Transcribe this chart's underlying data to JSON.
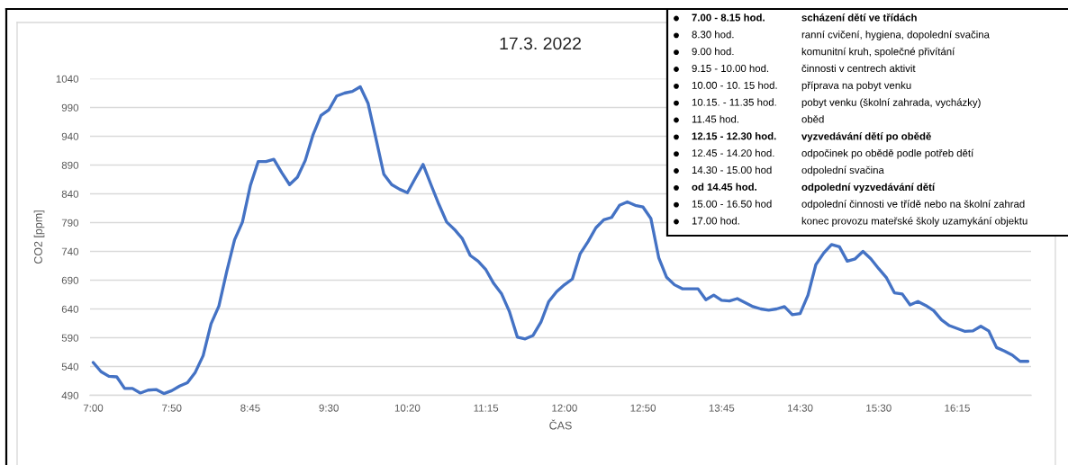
{
  "chart_data": {
    "type": "line",
    "title": "17.3. 2022",
    "xlabel": "ČAS",
    "ylabel": "CO2 [ppm]",
    "categories": [
      "7:00",
      null,
      null,
      null,
      null,
      null,
      null,
      null,
      null,
      null,
      "7:50",
      null,
      null,
      null,
      null,
      null,
      null,
      null,
      null,
      null,
      "8:45",
      null,
      null,
      null,
      null,
      null,
      null,
      null,
      null,
      null,
      "9:30",
      null,
      null,
      null,
      null,
      null,
      null,
      null,
      null,
      null,
      "10:20",
      null,
      null,
      null,
      null,
      null,
      null,
      null,
      null,
      null,
      "11:15",
      null,
      null,
      null,
      null,
      null,
      null,
      null,
      null,
      null,
      "12:00",
      null,
      null,
      null,
      null,
      null,
      null,
      null,
      null,
      null,
      "12:50",
      null,
      null,
      null,
      null,
      null,
      null,
      null,
      null,
      null,
      "13:45",
      null,
      null,
      null,
      null,
      null,
      null,
      null,
      null,
      null,
      "14:30",
      null,
      null,
      null,
      null,
      null,
      null,
      null,
      null,
      null,
      "15:30",
      null,
      null,
      null,
      null,
      null,
      null,
      null,
      null,
      null,
      "16:15",
      null,
      null,
      null,
      null,
      null,
      null,
      null,
      null,
      null
    ],
    "series": [
      {
        "color": "#4472c4",
        "values": [
          547,
          531,
          523,
          522,
          502,
          502,
          494,
          499,
          500,
          493,
          498,
          506,
          512,
          530,
          559,
          614,
          645,
          705,
          760,
          791,
          854,
          896,
          896,
          900,
          877,
          856,
          869,
          898,
          943,
          976,
          986,
          1010,
          1015,
          1018,
          1026,
          997,
          936,
          874,
          856,
          848,
          842,
          867,
          891,
          856,
          822,
          791,
          778,
          762,
          733,
          723,
          708,
          684,
          666,
          635,
          591,
          588,
          594,
          617,
          653,
          670,
          682,
          692,
          736,
          757,
          781,
          795,
          799,
          820,
          826,
          820,
          817,
          797,
          729,
          695,
          682,
          675,
          675,
          675,
          656,
          664,
          655,
          654,
          658,
          651,
          644,
          640,
          638,
          640,
          644,
          630,
          632,
          664,
          717,
          737,
          752,
          748,
          723,
          727,
          740,
          727,
          710,
          694,
          668,
          666,
          647,
          653,
          646,
          637,
          621,
          611,
          606,
          601,
          602,
          610,
          602,
          573,
          567,
          560,
          549,
          549
        ]
      }
    ],
    "ylim": [
      490,
      1040
    ],
    "yticks": [
      490,
      540,
      590,
      640,
      690,
      740,
      790,
      840,
      890,
      940,
      990,
      1040
    ],
    "grid": "y",
    "marker": "none",
    "line_style": "solid",
    "annotations": [
      "7.00 - 8.15 hod.",
      "scházení dětí ve třídách",
      "8.30 hod.",
      "ranní cvičení, hygiena, dopolední svačina",
      "9.00 hod.",
      "komunitní kruh, společné přivítání",
      "9.15 - 10.00 hod.",
      "činnosti v centrech aktivit",
      "10.00 - 10. 15 hod.",
      "příprava na pobyt venku",
      "10.15. - 11.35 hod.",
      "pobyt venku (školní zahrada, vycházky)",
      "11.45 hod.",
      "oběd",
      "12.15 - 12.30 hod.",
      "vyzvedávání dětí po obědě",
      "12.45 - 14.20 hod.",
      "odpočinek po obědě podle potřeb dětí",
      "14.30 - 15.00 hod",
      "odpolední svačina",
      "od 14.45 hod.",
      "odpolední vyzvedávání dětí",
      "15.00 - 16.50 hod",
      "odpolední činnosti ve třídě nebo na školní zahrad",
      "17.00 hod.",
      "konec provozu mateřské školy uzamykání objektu"
    ]
  }
}
